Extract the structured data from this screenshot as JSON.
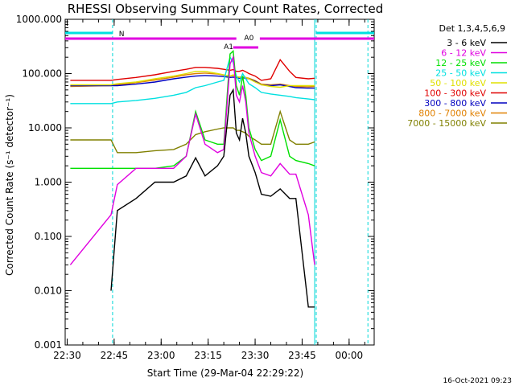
{
  "chart_data": {
    "type": "line",
    "title": "RHESSI Observing Summary Count Rates, Corrected",
    "xlabel": "Start Time (29-Mar-04 22:29:22)",
    "ylabel": "Corrected Count Rate (s⁻¹ detector⁻¹)",
    "y_scale": "log",
    "ylim": [
      0.001,
      1000
    ],
    "xlim": [
      "22:29:22",
      "00:08:00"
    ],
    "x_ticks": [
      "22:30",
      "22:45",
      "23:00",
      "23:15",
      "23:30",
      "23:45",
      "00:00"
    ],
    "y_ticks": [
      "0.001",
      "0.010",
      "0.100",
      "1.000",
      "10.000",
      "100.000",
      "1000.000"
    ],
    "detectors": "Det 1,3,4,5,6,9",
    "timestamp": "16-Oct-2021 09:23",
    "attenuator_labels": [
      "A1",
      "A0"
    ],
    "night_label": "N",
    "x": [
      "22:31",
      "22:44",
      "22:46",
      "22:52",
      "22:58",
      "23:04",
      "23:08",
      "23:11",
      "23:14",
      "23:18",
      "23:20",
      "23:22",
      "23:23",
      "23:24",
      "23:25",
      "23:26",
      "23:27",
      "23:28",
      "23:30",
      "23:32",
      "23:35",
      "23:38",
      "23:41",
      "23:43",
      "23:47",
      "23:49"
    ],
    "series": [
      {
        "name": "3 - 6 keV",
        "color": "#000000",
        "values": [
          null,
          0.01,
          0.3,
          0.5,
          1.0,
          1.0,
          1.3,
          2.8,
          1.3,
          2.0,
          3.0,
          40,
          50,
          8,
          6,
          15,
          8,
          3,
          1.5,
          0.6,
          0.55,
          0.75,
          0.5,
          0.5,
          0.005,
          0.005
        ]
      },
      {
        "name": "6 - 12 keV",
        "color": "#e000e0",
        "values": [
          0.03,
          0.25,
          0.9,
          1.8,
          1.8,
          1.8,
          3.0,
          18,
          5.0,
          3.5,
          4.0,
          150,
          200,
          40,
          30,
          60,
          30,
          8,
          3,
          1.5,
          1.3,
          2.2,
          1.4,
          1.4,
          0.25,
          0.03
        ]
      },
      {
        "name": "12 - 25 keV",
        "color": "#00e000",
        "values": [
          1.8,
          1.8,
          1.8,
          1.8,
          1.8,
          2.0,
          3.0,
          20,
          6,
          5,
          5,
          230,
          260,
          60,
          40,
          90,
          40,
          10,
          4,
          2.5,
          3,
          14,
          3,
          2.5,
          2.2,
          2.0
        ]
      },
      {
        "name": "25 - 50 keV",
        "color": "#00e0e0",
        "values": [
          28,
          28,
          30,
          32,
          35,
          40,
          45,
          55,
          60,
          70,
          75,
          200,
          160,
          90,
          70,
          100,
          80,
          65,
          55,
          45,
          42,
          40,
          38,
          36,
          34,
          33
        ]
      },
      {
        "name": "50 - 100 keV",
        "color": "#e0e000",
        "values": [
          62,
          62,
          65,
          70,
          80,
          90,
          100,
          110,
          110,
          100,
          95,
          90,
          95,
          88,
          85,
          88,
          84,
          80,
          70,
          62,
          58,
          56,
          60,
          60,
          60,
          60
        ]
      },
      {
        "name": "100 - 300 keV",
        "color": "#e00000",
        "values": [
          75,
          75,
          78,
          85,
          95,
          110,
          120,
          130,
          130,
          125,
          120,
          115,
          118,
          110,
          110,
          115,
          108,
          100,
          90,
          75,
          80,
          180,
          110,
          85,
          80,
          82
        ]
      },
      {
        "name": "300 - 800 keV",
        "color": "#0000c0",
        "values": [
          60,
          60,
          60,
          64,
          70,
          80,
          86,
          90,
          92,
          90,
          88,
          85,
          86,
          84,
          82,
          84,
          82,
          80,
          72,
          62,
          60,
          62,
          58,
          55,
          54,
          54
        ]
      },
      {
        "name": "800 - 7000 keV",
        "color": "#e08000",
        "values": [
          58,
          60,
          62,
          68,
          76,
          86,
          95,
          100,
          102,
          98,
          94,
          90,
          92,
          88,
          86,
          88,
          85,
          82,
          74,
          64,
          62,
          64,
          60,
          58,
          57,
          58
        ]
      },
      {
        "name": "7000 - 15000 keV",
        "color": "#808000",
        "values": [
          6,
          6,
          3.5,
          3.5,
          3.8,
          4.0,
          5.0,
          7.5,
          8.5,
          9.5,
          10,
          10,
          10,
          9,
          9,
          8.5,
          8,
          7,
          6,
          5,
          5,
          20,
          6,
          5,
          5,
          5.5
        ]
      }
    ],
    "legend_position": "right"
  }
}
